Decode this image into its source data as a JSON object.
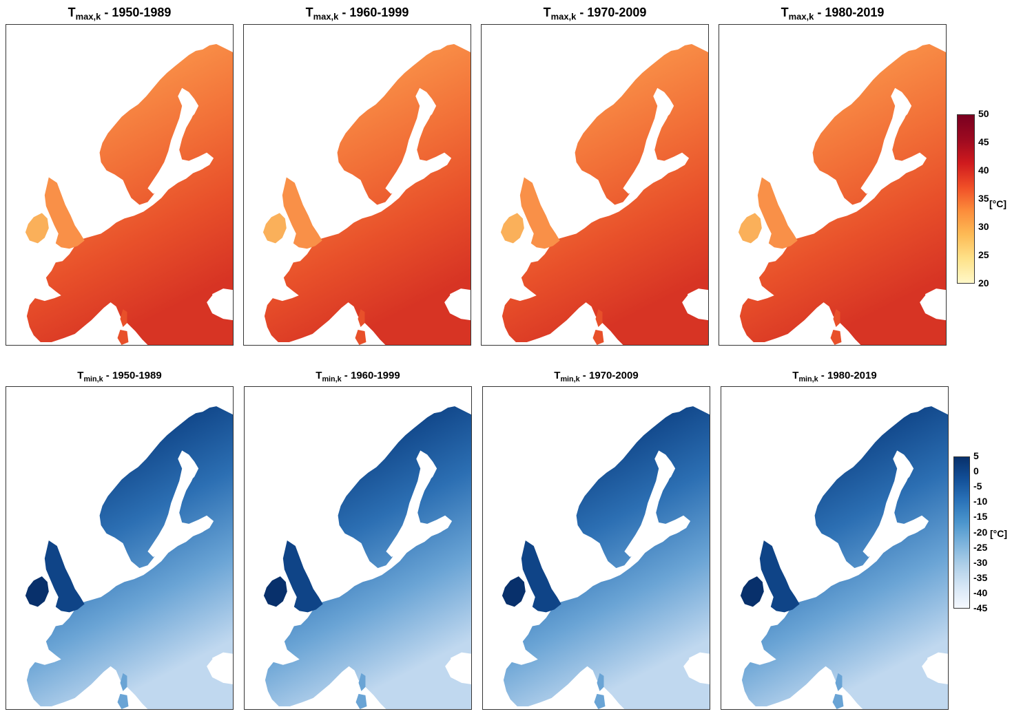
{
  "rows": [
    {
      "variable_main": "T",
      "variable_sub": "max,k",
      "colormap": "YlOrRd",
      "colors": [
        "#fff8c8",
        "#fee28a",
        "#fdbb56",
        "#fc8d3b",
        "#f04e27",
        "#cf1a1e",
        "#9c0a20",
        "#7a0020"
      ],
      "land_gradient": [
        "#fab05a",
        "#f99048",
        "#f27138",
        "#e8502a",
        "#d73424"
      ],
      "panels": [
        {
          "id": "tmax-1950-1989",
          "period": " - 1950-1989"
        },
        {
          "id": "tmax-1960-1999",
          "period": " - 1960-1999"
        },
        {
          "id": "tmax-1970-2009",
          "period": " - 1970-2009"
        },
        {
          "id": "tmax-1980-2019",
          "period": " - 1980-2019"
        }
      ],
      "colorbar": {
        "min": 20,
        "max": 50,
        "ticks": [
          "50",
          "45",
          "40",
          "35",
          "30",
          "25",
          "20"
        ],
        "unit": "[°C]"
      }
    },
    {
      "variable_main": "T",
      "variable_sub": "min,k",
      "colormap": "Blues",
      "colors": [
        "#f5f9ff",
        "#d6e6f5",
        "#aecfe8",
        "#7cb3dc",
        "#4a94cc",
        "#2a72b8",
        "#124f97",
        "#08306b"
      ],
      "land_gradient": [
        "#08306b",
        "#0f4487",
        "#2c6fb3",
        "#6aa4d5",
        "#c0d8ef"
      ],
      "panels": [
        {
          "id": "tmin-1950-1989",
          "period": " - 1950-1989"
        },
        {
          "id": "tmin-1960-1999",
          "period": " - 1960-1999"
        },
        {
          "id": "tmin-1970-2009",
          "period": " - 1970-2009"
        },
        {
          "id": "tmin-1980-2019",
          "period": " - 1980-2019"
        }
      ],
      "colorbar": {
        "min": -45,
        "max": 5,
        "ticks": [
          "5",
          "0",
          "-5",
          "-10",
          "-15",
          "-20",
          "-25",
          "-30",
          "-35",
          "-40",
          "-45"
        ],
        "unit": "[°C]"
      }
    }
  ]
}
